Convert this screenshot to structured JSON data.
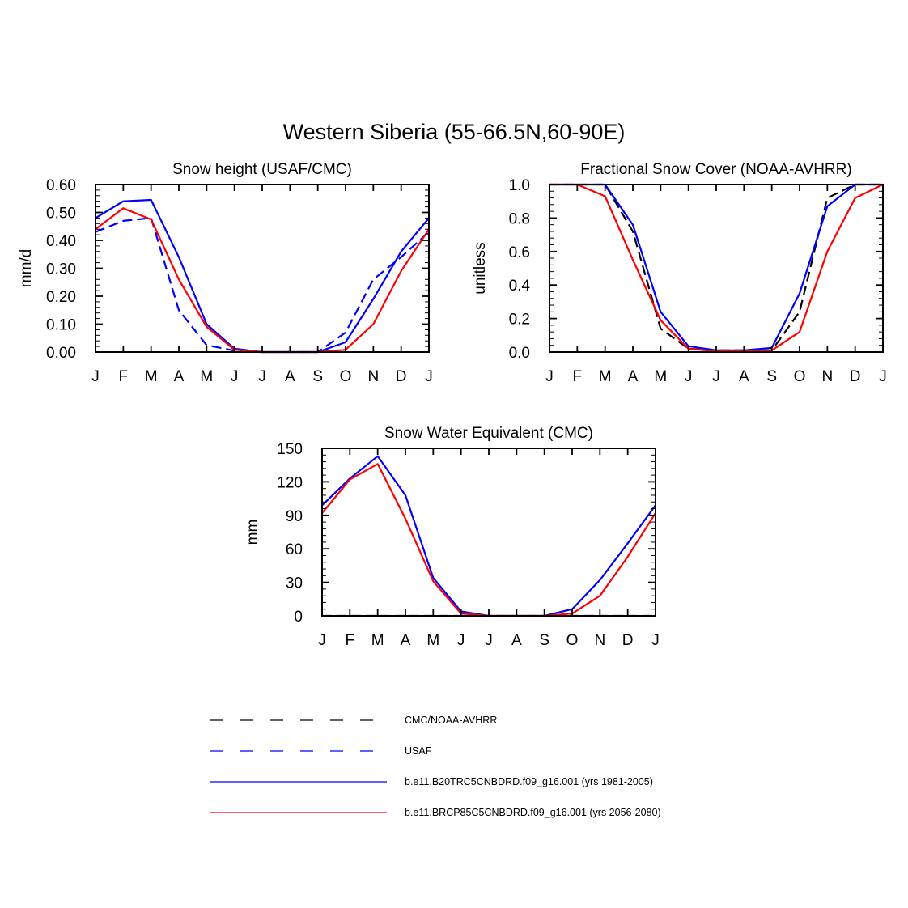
{
  "figure": {
    "title": "Western Siberia (55-66.5N,60-90E)"
  },
  "legend": {
    "entries": [
      {
        "label": "CMC/NOAA-AVHRR",
        "color": "#000000",
        "dash": "dashed"
      },
      {
        "label": "USAF",
        "color": "#0000ff",
        "dash": "dashed"
      },
      {
        "label": "b.e11.B20TRC5CNBDRD.f09_g16.001 (yrs 1981-2005)",
        "color": "#0000ff",
        "dash": "solid"
      },
      {
        "label": "b.e11.BRCP85C5CNBDRD.f09_g16.001 (yrs 2056-2080)",
        "color": "#ff0000",
        "dash": "solid"
      }
    ]
  },
  "chart_data": [
    {
      "type": "line",
      "title": "Snow height (USAF/CMC)",
      "ylabel": "mm/d",
      "xlabel": "",
      "categories": [
        "J",
        "F",
        "M",
        "A",
        "M",
        "J",
        "J",
        "A",
        "S",
        "O",
        "N",
        "D",
        "J"
      ],
      "ylim": [
        0,
        0.6
      ],
      "yticks": [
        "0.00",
        "0.10",
        "0.20",
        "0.30",
        "0.40",
        "0.50",
        "0.60"
      ],
      "series": [
        {
          "name": "USAF",
          "color": "#0000ff",
          "dash": "dashed",
          "values": [
            0.43,
            0.47,
            0.48,
            0.15,
            0.025,
            0.005,
            0.0,
            0.0,
            0.0,
            0.07,
            0.26,
            0.34,
            0.43
          ]
        },
        {
          "name": "b.e11.B20TRC5CNBDRD.f09_g16.001 (yrs 1981-2005)",
          "color": "#0000ff",
          "dash": "solid",
          "values": [
            0.48,
            0.54,
            0.545,
            0.34,
            0.1,
            0.012,
            0.0,
            0.0,
            0.0,
            0.035,
            0.19,
            0.36,
            0.48
          ]
        },
        {
          "name": "b.e11.BRCP85C5CNBDRD.f09_g16.001 (yrs 2056-2080)",
          "color": "#ff0000",
          "dash": "solid",
          "values": [
            0.44,
            0.515,
            0.475,
            0.26,
            0.09,
            0.008,
            0.0,
            0.0,
            0.0,
            0.008,
            0.1,
            0.29,
            0.44
          ]
        }
      ]
    },
    {
      "type": "line",
      "title": "Fractional Snow Cover (NOAA-AVHRR)",
      "ylabel": "unitless",
      "xlabel": "",
      "categories": [
        "J",
        "F",
        "M",
        "A",
        "M",
        "J",
        "J",
        "A",
        "S",
        "O",
        "N",
        "D",
        "J"
      ],
      "ylim": [
        0,
        1.0
      ],
      "yticks": [
        "0.0",
        "0.2",
        "0.4",
        "0.6",
        "0.8",
        "1.0"
      ],
      "series": [
        {
          "name": "CMC/NOAA-AVHRR",
          "color": "#000000",
          "dash": "dashed",
          "values": [
            1.0,
            1.0,
            1.0,
            0.72,
            0.14,
            0.02,
            0.01,
            0.01,
            0.01,
            0.24,
            0.92,
            1.0,
            1.0
          ]
        },
        {
          "name": "b.e11.B20TRC5CNBDRD.f09_g16.001 (yrs 1981-2005)",
          "color": "#0000ff",
          "dash": "solid",
          "values": [
            1.0,
            1.0,
            1.0,
            0.76,
            0.24,
            0.035,
            0.01,
            0.01,
            0.025,
            0.35,
            0.87,
            1.0,
            1.0
          ]
        },
        {
          "name": "b.e11.BRCP85C5CNBDRD.f09_g16.001 (yrs 2056-2080)",
          "color": "#ff0000",
          "dash": "solid",
          "values": [
            1.0,
            1.0,
            0.93,
            0.55,
            0.19,
            0.02,
            0.005,
            0.005,
            0.01,
            0.12,
            0.6,
            0.92,
            1.0
          ]
        }
      ]
    },
    {
      "type": "line",
      "title": "Snow Water Equivalent (CMC)",
      "ylabel": "mm",
      "xlabel": "",
      "categories": [
        "J",
        "F",
        "M",
        "A",
        "M",
        "J",
        "J",
        "A",
        "S",
        "O",
        "N",
        "D",
        "J"
      ],
      "ylim": [
        0,
        150
      ],
      "yticks": [
        "0",
        "30",
        "60",
        "90",
        "120",
        "150"
      ],
      "series": [
        {
          "name": "CMC/NOAA-AVHRR",
          "color": "#000000",
          "dash": "dashed",
          "values": [
            0,
            0,
            0,
            0,
            0,
            0,
            0,
            0,
            0,
            0,
            0,
            0,
            0
          ]
        },
        {
          "name": "b.e11.B20TRC5CNBDRD.f09_g16.001 (yrs 1981-2005)",
          "color": "#0000ff",
          "dash": "solid",
          "values": [
            99,
            123,
            143,
            108,
            34,
            4,
            0,
            0,
            0,
            6,
            32,
            65,
            99
          ]
        },
        {
          "name": "b.e11.BRCP85C5CNBDRD.f09_g16.001 (yrs 2056-2080)",
          "color": "#ff0000",
          "dash": "solid",
          "values": [
            92,
            122,
            136,
            87,
            31,
            2,
            0,
            0,
            0,
            2,
            18,
            53,
            92
          ]
        }
      ]
    }
  ]
}
